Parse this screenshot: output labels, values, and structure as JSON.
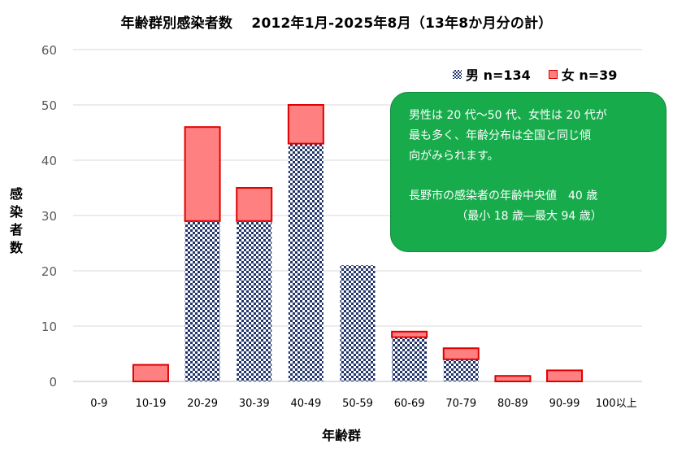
{
  "chart_data": {
    "type": "bar",
    "stacked": true,
    "title": "年齢群別感染者数　 2012年1月-2025年8月（13年8か月分の計）",
    "xlabel": "年齢群",
    "ylabel": "感染者数",
    "ylim": [
      0,
      60
    ],
    "yticks": [
      0,
      10,
      20,
      30,
      40,
      50,
      60
    ],
    "grid": true,
    "legend_position": "top-right",
    "categories": [
      "0-9",
      "10-19",
      "20-29",
      "30-39",
      "40-49",
      "50-59",
      "60-69",
      "70-79",
      "80-89",
      "90-99",
      "100以上"
    ],
    "series": [
      {
        "name": "男 n=134",
        "values": [
          0,
          0,
          29,
          29,
          43,
          21,
          8,
          4,
          0,
          0,
          0
        ],
        "fill": "checkerboard",
        "color": "#22356a"
      },
      {
        "name": "女 n=39",
        "values": [
          0,
          3,
          17,
          6,
          7,
          0,
          1,
          2,
          1,
          2,
          0
        ],
        "color": "#ff8080",
        "edge": "#e00000"
      }
    ]
  },
  "legend": {
    "male": "男 n=134",
    "female": "女 n=39"
  },
  "note": {
    "line1": "男性は 20 代〜50 代、女性は 20 代が",
    "line2": "最も多く、年齢分布は全国と同じ傾",
    "line3": "向がみられます。",
    "line4": "長野市の感染者の年齢中央値　40 歳",
    "line5": "（最小 18 歳―最大 94 歳）",
    "bg": "#17ab4c"
  }
}
